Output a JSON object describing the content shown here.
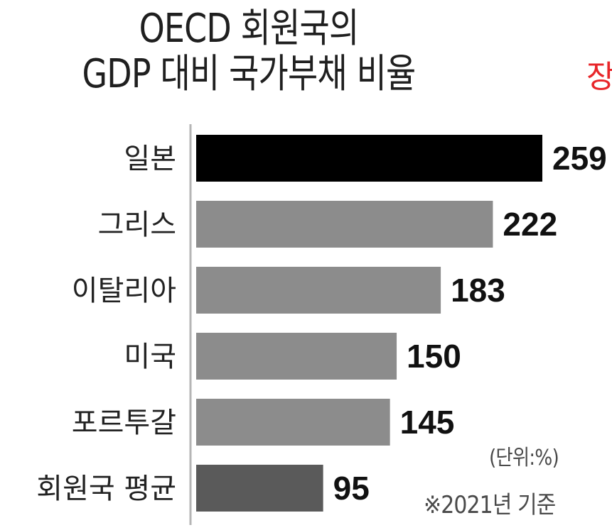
{
  "chart_data": {
    "type": "bar",
    "orientation": "horizontal",
    "title_line1": "OECD 회원국의",
    "title_line2": "GDP 대비 국가부채 비율",
    "categories": [
      "일본",
      "그리스",
      "이탈리아",
      "미국",
      "포르투갈",
      "회원국 평균"
    ],
    "values": [
      259,
      222,
      183,
      150,
      145,
      95
    ],
    "bar_colors": [
      "#000000",
      "#8c8c8c",
      "#8c8c8c",
      "#8c8c8c",
      "#8c8c8c",
      "#5a5a5a"
    ],
    "xlim": [
      0,
      259
    ],
    "grid": false,
    "unit": "(단위:%)",
    "basis": "※2021년 기준"
  },
  "side_note": "장",
  "colors": {
    "accent_red": "#e8262a",
    "axis": "#b5b5b5"
  }
}
